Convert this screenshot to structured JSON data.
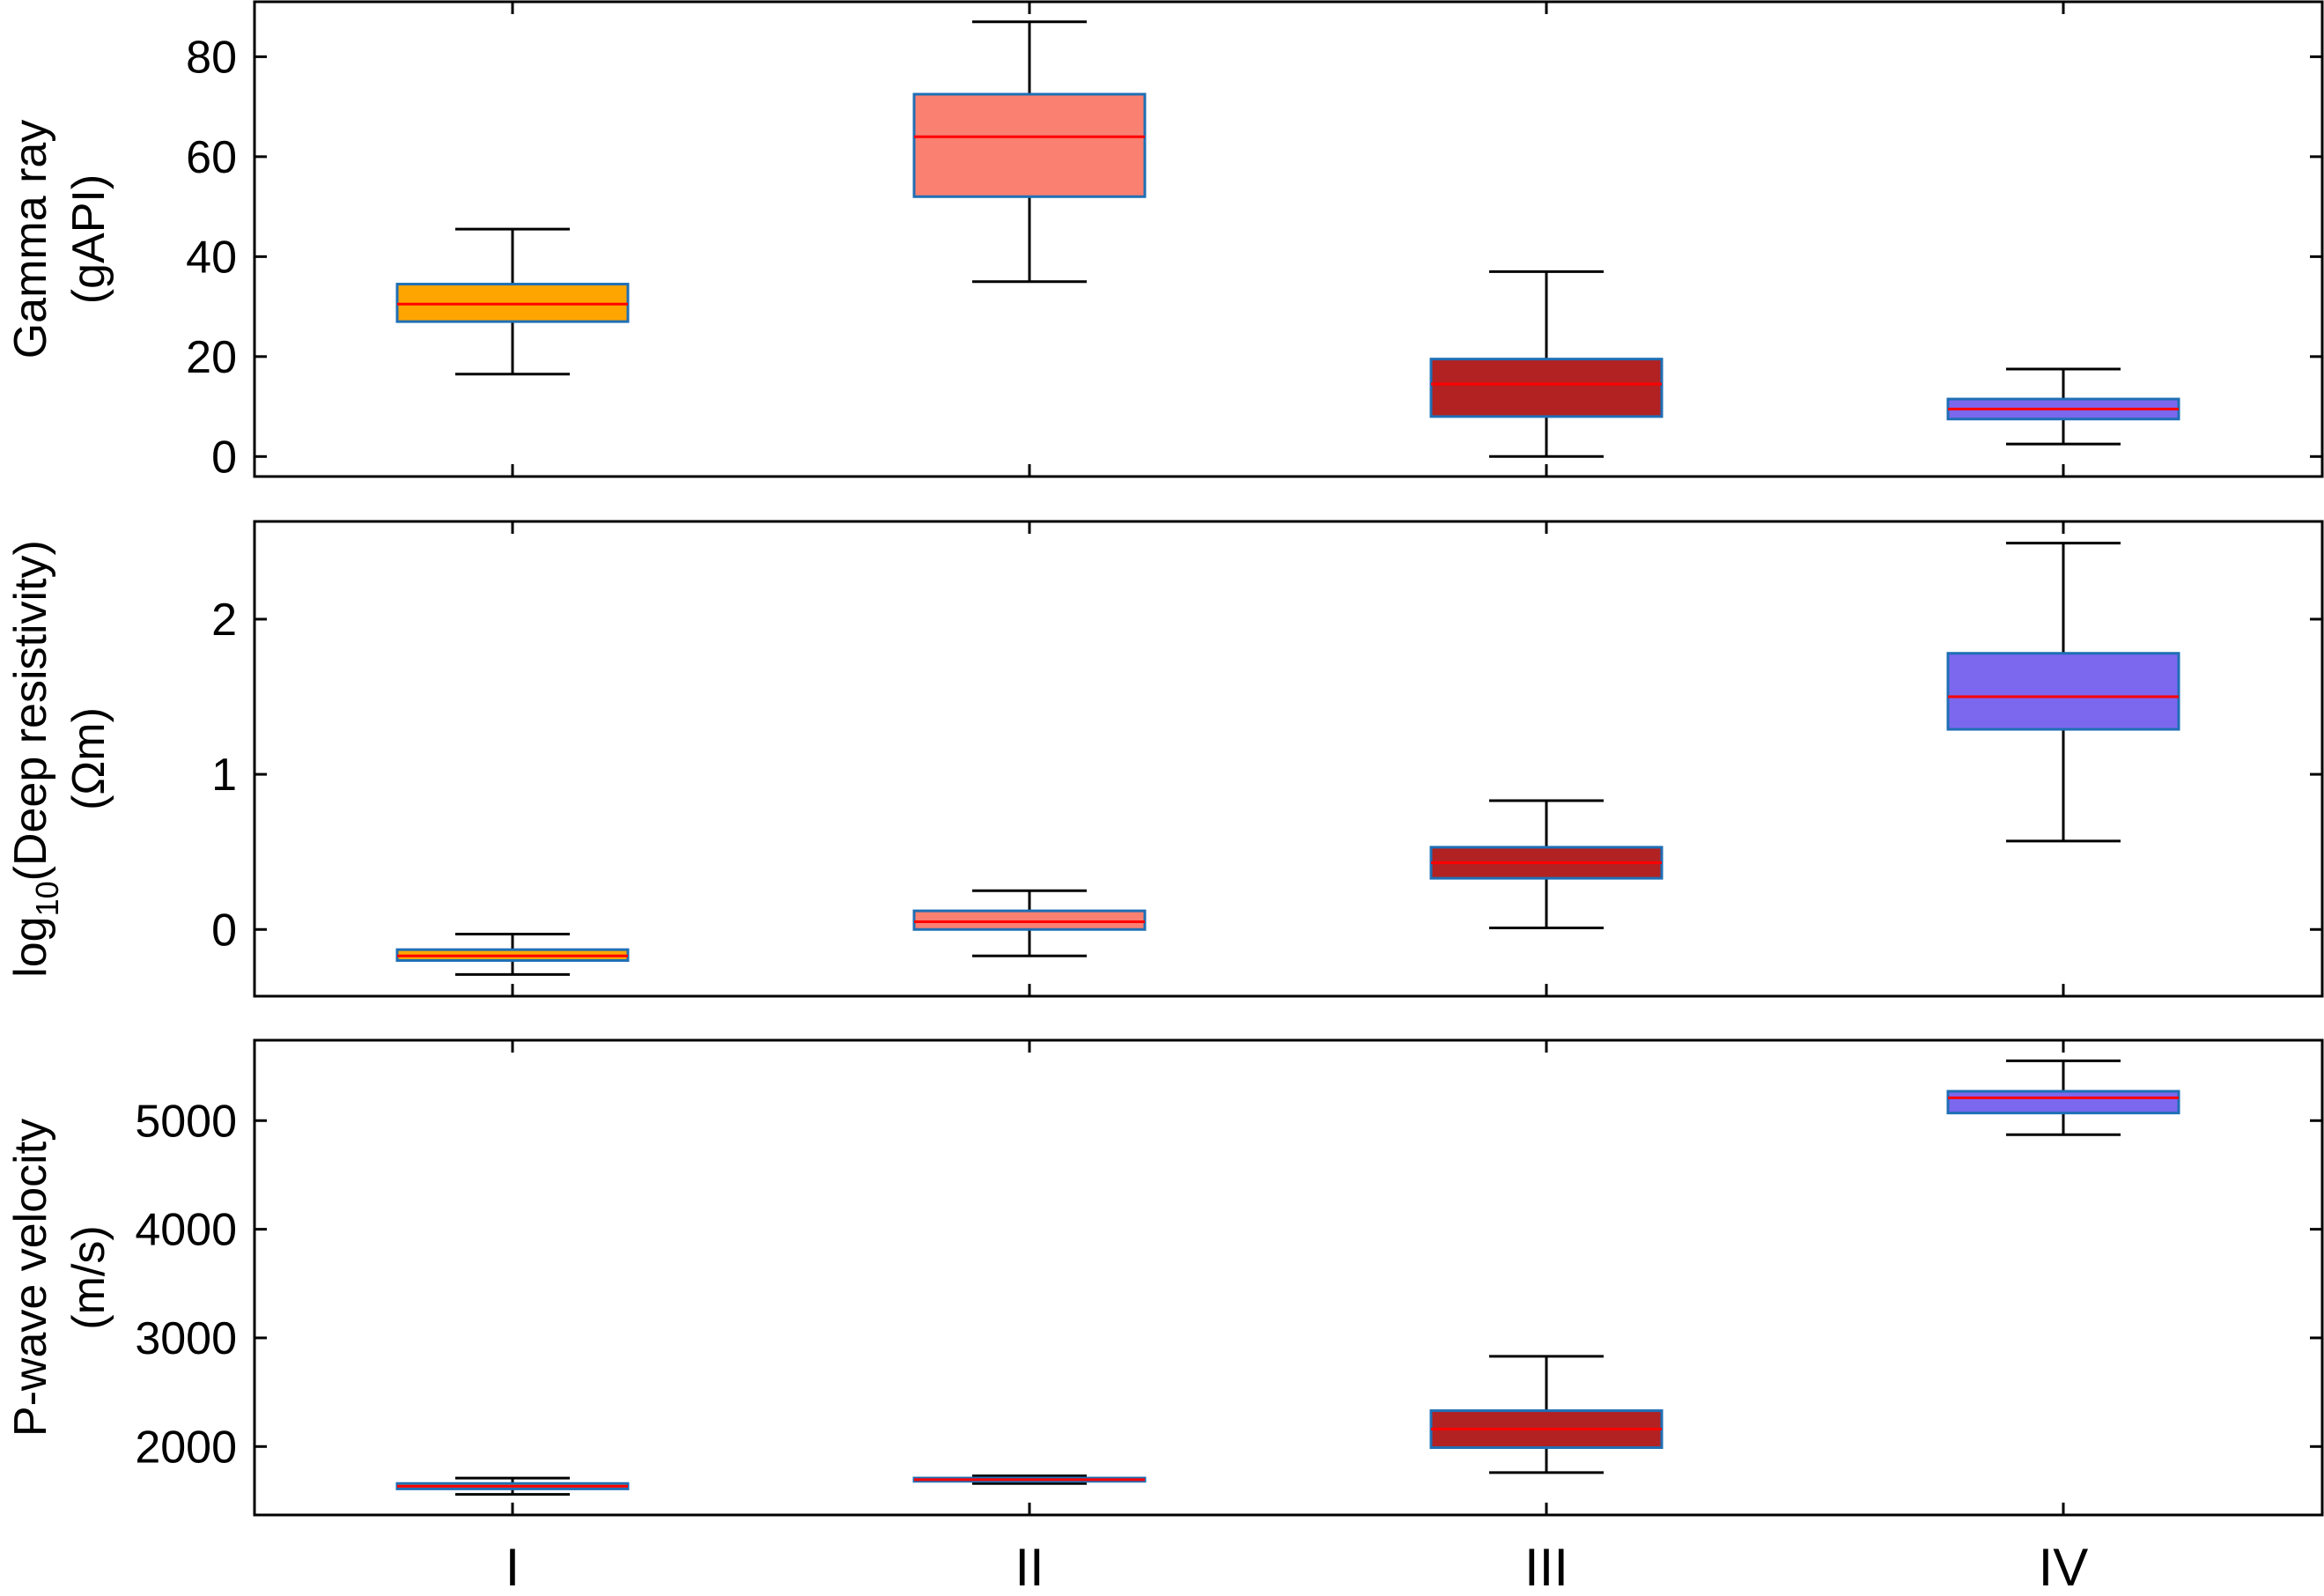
{
  "chart_data": [
    {
      "type": "box",
      "ylabel": [
        "Gamma ray",
        "(gAPI)"
      ],
      "ylim": [
        -4,
        91
      ],
      "yticks": [
        0,
        20,
        40,
        60,
        80
      ],
      "categories": [
        "I",
        "II",
        "III",
        "IV"
      ],
      "boxes": [
        {
          "category": "I",
          "whisker_low": 16.5,
          "q1": 27,
          "median": 30.5,
          "q3": 34.5,
          "whisker_high": 45.5,
          "fill": "#FFA500"
        },
        {
          "category": "II",
          "whisker_low": 35,
          "q1": 52,
          "median": 64,
          "q3": 72.5,
          "whisker_high": 87,
          "fill": "#FA8072"
        },
        {
          "category": "III",
          "whisker_low": 0,
          "q1": 8,
          "median": 14.5,
          "q3": 19.5,
          "whisker_high": 37,
          "fill": "#B22222"
        },
        {
          "category": "IV",
          "whisker_low": 2.5,
          "q1": 7.5,
          "median": 9.5,
          "q3": 11.5,
          "whisker_high": 17.5,
          "fill": "#7B68EE"
        }
      ]
    },
    {
      "type": "box",
      "ylabel_prefix": "log",
      "ylabel_sub": "10",
      "ylabel_suffix": "(Deep resistivity)",
      "ylabel_line2": "(Ωm)",
      "ylim": [
        -0.43,
        2.63
      ],
      "yticks": [
        0,
        1,
        2
      ],
      "categories": [
        "I",
        "II",
        "III",
        "IV"
      ],
      "boxes": [
        {
          "category": "I",
          "whisker_low": -0.29,
          "q1": -0.2,
          "median": -0.17,
          "q3": -0.13,
          "whisker_high": -0.03,
          "fill": "#FFA500"
        },
        {
          "category": "II",
          "whisker_low": -0.17,
          "q1": 0.0,
          "median": 0.05,
          "q3": 0.12,
          "whisker_high": 0.25,
          "fill": "#FA8072"
        },
        {
          "category": "III",
          "whisker_low": 0.01,
          "q1": 0.33,
          "median": 0.43,
          "q3": 0.53,
          "whisker_high": 0.83,
          "fill": "#B22222"
        },
        {
          "category": "IV",
          "whisker_low": 0.57,
          "q1": 1.29,
          "median": 1.5,
          "q3": 1.78,
          "whisker_high": 2.49,
          "fill": "#7B68EE"
        }
      ]
    },
    {
      "type": "box",
      "ylabel": [
        "P-wave velocity",
        "(m/s)"
      ],
      "ylim": [
        1370,
        5740
      ],
      "yticks": [
        2000,
        3000,
        4000,
        5000
      ],
      "xticklabels": [
        "I",
        "II",
        "III",
        "IV"
      ],
      "categories": [
        "I",
        "II",
        "III",
        "IV"
      ],
      "boxes": [
        {
          "category": "I",
          "whisker_low": 1560,
          "q1": 1610,
          "median": 1635,
          "q3": 1660,
          "whisker_high": 1710,
          "fill": "#FFA500"
        },
        {
          "category": "II",
          "whisker_low": 1660,
          "q1": 1680,
          "median": 1695,
          "q3": 1710,
          "whisker_high": 1730,
          "fill": "#FA8072"
        },
        {
          "category": "III",
          "whisker_low": 1760,
          "q1": 1990,
          "median": 2160,
          "q3": 2330,
          "whisker_high": 2830,
          "fill": "#B22222"
        },
        {
          "category": "IV",
          "whisker_low": 4870,
          "q1": 5070,
          "median": 5210,
          "q3": 5270,
          "whisker_high": 5550,
          "fill": "#7B68EE"
        }
      ]
    }
  ],
  "colors": {
    "box_edge": "#1F6FB5",
    "median_line": "#FF0000",
    "whisker": "#000000",
    "axis": "#000000"
  }
}
